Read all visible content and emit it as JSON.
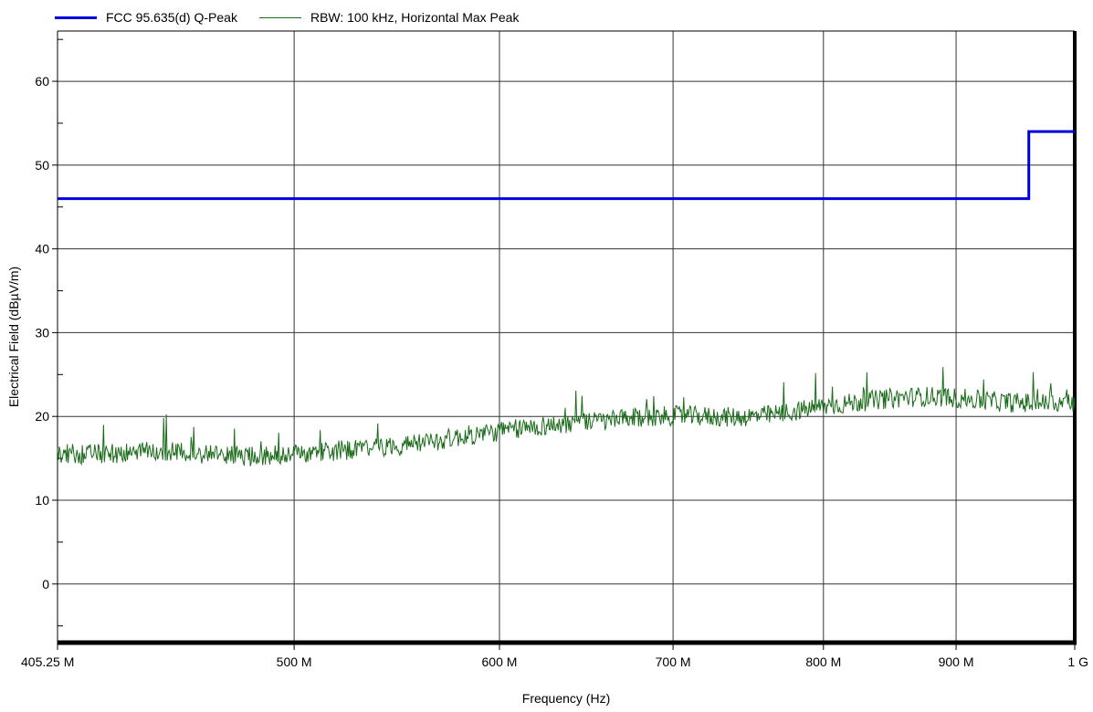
{
  "chart_data": {
    "type": "line",
    "title": "",
    "xlabel": "Frequency (Hz)",
    "ylabel": "Electrical Field (dBµV/m)",
    "x_scale": "log",
    "xlim": [
      405250000,
      1000000000
    ],
    "ylim": [
      -7,
      66
    ],
    "x_ticks": [
      {
        "value": 405250000,
        "label": "405.25 M"
      },
      {
        "value": 500000000,
        "label": "500 M"
      },
      {
        "value": 600000000,
        "label": "600 M"
      },
      {
        "value": 700000000,
        "label": "700 M"
      },
      {
        "value": 800000000,
        "label": "800 M"
      },
      {
        "value": 900000000,
        "label": "900 M"
      },
      {
        "value": 1000000000,
        "label": "1 G"
      }
    ],
    "y_ticks": [
      0,
      10,
      20,
      30,
      40,
      50,
      60
    ],
    "grid": true,
    "legend_position": "top-left",
    "series": [
      {
        "name": "FCC 95.635(d) Q-Peak",
        "color": "#0000dd",
        "style": "step",
        "x": [
          405250000,
          960000000,
          960000000,
          1000000000
        ],
        "y": [
          46,
          46,
          54,
          54
        ]
      },
      {
        "name": "RBW: 100 kHz, Horizontal Max Peak",
        "color": "#1a6b1a",
        "style": "noisy-trace",
        "x": [
          405250000,
          420000000,
          440000000,
          460000000,
          480000000,
          500000000,
          520000000,
          540000000,
          560000000,
          580000000,
          600000000,
          620000000,
          640000000,
          660000000,
          680000000,
          700000000,
          720000000,
          740000000,
          760000000,
          780000000,
          800000000,
          820000000,
          840000000,
          860000000,
          880000000,
          900000000,
          920000000,
          940000000,
          960000000,
          980000000,
          1000000000
        ],
        "y": [
          15.5,
          15.5,
          15.8,
          15.6,
          15.2,
          15.5,
          15.9,
          16.3,
          16.8,
          17.6,
          18.2,
          18.8,
          19.2,
          19.5,
          19.8,
          20.1,
          20.0,
          19.9,
          20.1,
          20.6,
          21.2,
          21.6,
          22.0,
          22.3,
          22.4,
          22.2,
          21.9,
          21.7,
          21.6,
          21.6,
          21.7
        ]
      }
    ]
  }
}
